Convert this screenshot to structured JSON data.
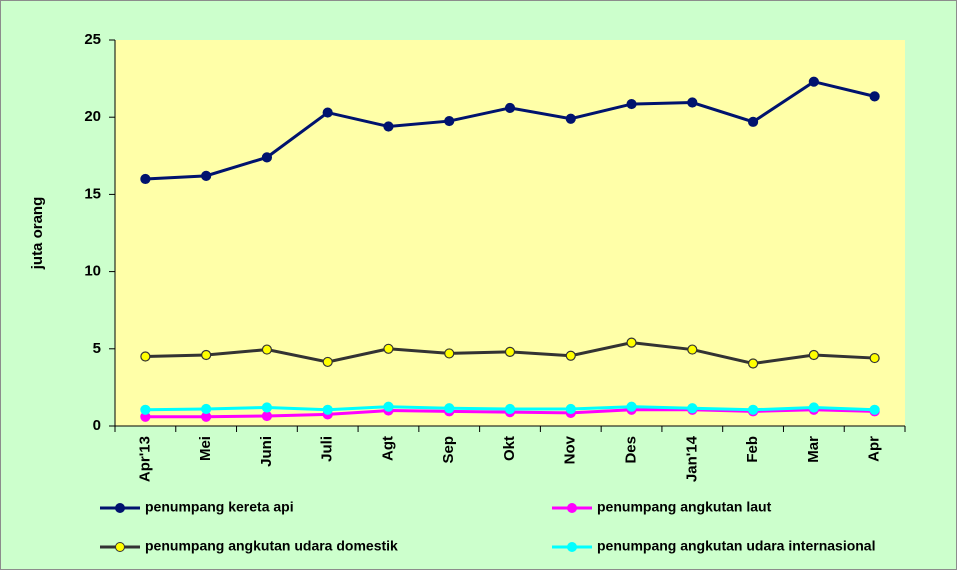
{
  "chart_data": {
    "type": "line",
    "y_label": "juta orang",
    "categories": [
      "Apr'13",
      "Mei",
      "Juni",
      "Juli",
      "Agt",
      "Sep",
      "Okt",
      "Nov",
      "Des",
      "Jan'14",
      "Feb",
      "Mar",
      "Apr"
    ],
    "series": [
      {
        "name": "penumpang kereta api",
        "color": "#00136e",
        "values": [
          16.0,
          16.2,
          17.4,
          20.3,
          19.4,
          19.75,
          20.6,
          19.9,
          20.85,
          20.95,
          19.7,
          22.3,
          21.35
        ]
      },
      {
        "name": "penumpang angkutan laut",
        "color": "#ff00ff",
        "values": [
          0.6,
          0.6,
          0.65,
          0.75,
          1.0,
          0.95,
          0.9,
          0.85,
          1.05,
          1.05,
          0.95,
          1.05,
          0.95
        ]
      },
      {
        "name": "penumpang angkutan udara domestik",
        "color": "#333333",
        "values": [
          4.5,
          4.6,
          4.95,
          4.15,
          5.0,
          4.7,
          4.8,
          4.55,
          5.4,
          4.95,
          4.05,
          4.6,
          4.4
        ]
      },
      {
        "name": "penumpang angkutan udara internasional",
        "color": "#00ffff",
        "values": [
          1.05,
          1.1,
          1.2,
          1.05,
          1.25,
          1.15,
          1.1,
          1.1,
          1.25,
          1.15,
          1.05,
          1.2,
          1.05
        ]
      }
    ],
    "ylim": [
      0,
      25
    ],
    "yticks": [
      0,
      5,
      10,
      15,
      20,
      25
    ],
    "grid": false,
    "legend": "bottom"
  }
}
